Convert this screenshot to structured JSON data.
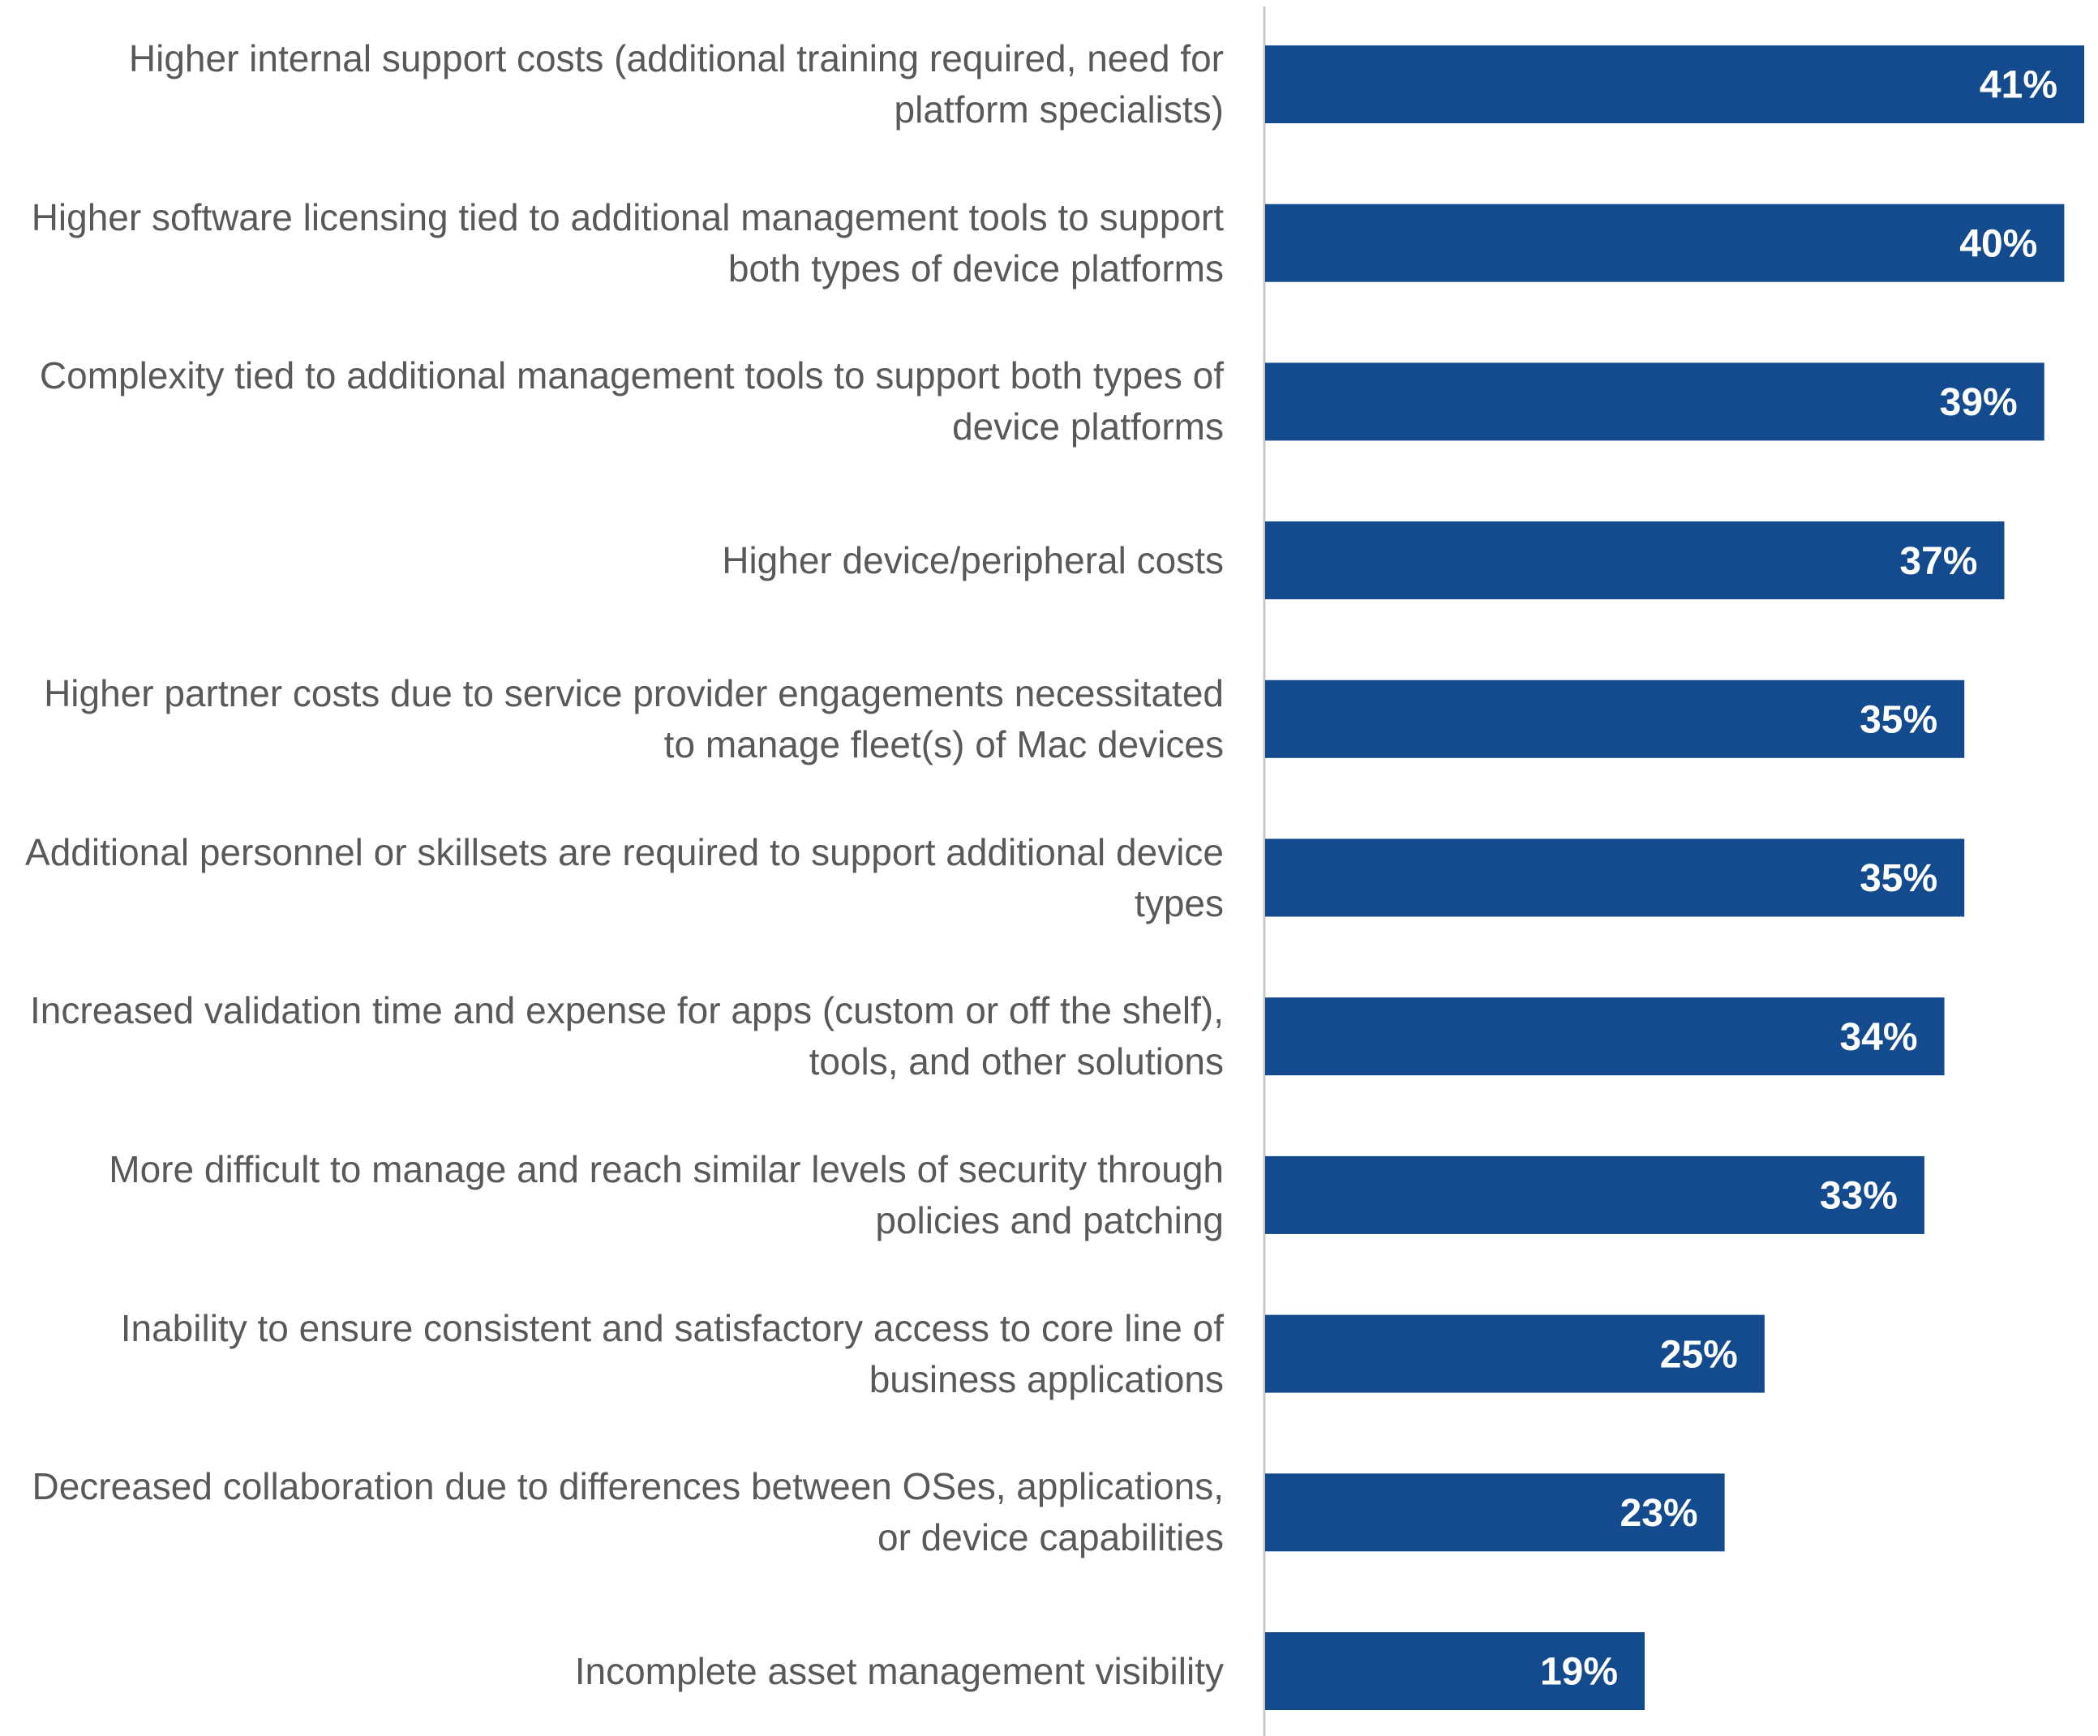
{
  "chart_data": {
    "type": "bar",
    "orientation": "horizontal",
    "categories": [
      "Higher internal support costs (additional training required, need for platform specialists)",
      "Higher software licensing tied to additional management tools to support both types of device platforms",
      "Complexity tied to additional management tools to support both types of device platforms",
      "Higher device/peripheral costs",
      "Higher partner costs due to service provider engagements necessitated to manage fleet(s) of Mac devices",
      "Additional personnel or skillsets are required to support additional device types",
      "Increased validation time and expense for apps (custom or off the shelf), tools, and other solutions",
      "More difficult to manage and reach similar levels of security through policies and patching",
      "Inability to ensure consistent and satisfactory access to core line of business applications",
      "Decreased collaboration due to differences between OSes, applications, or device capabilities",
      "Incomplete asset management visibility"
    ],
    "values": [
      41,
      40,
      39,
      37,
      35,
      35,
      34,
      33,
      25,
      23,
      19
    ],
    "value_labels": [
      "41%",
      "40%",
      "39%",
      "37%",
      "35%",
      "35%",
      "34%",
      "33%",
      "25%",
      "23%",
      "19%"
    ],
    "color": "#134b8e"
  }
}
